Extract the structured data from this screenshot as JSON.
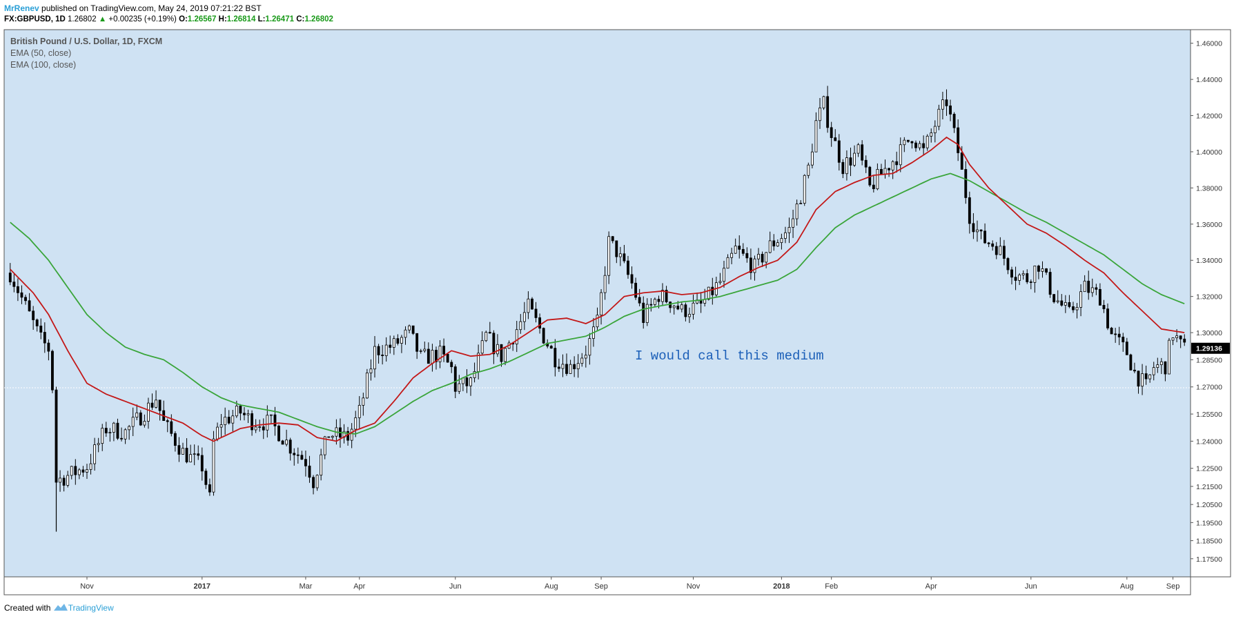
{
  "header": {
    "author": "MrRenev",
    "published_text": "published on TradingView.com, May 24, 2019 07:21:22 BST",
    "symbol": "FX:GBPUSD, 1D",
    "last_value": "1.26802",
    "change": "+0.00235 (+0.19%)",
    "o_label": "O:",
    "o_value": "1.26567",
    "h_label": "H:",
    "h_value": "1.26814",
    "l_label": "L:",
    "l_value": "1.26471",
    "c_label": "C:",
    "c_value": "1.26802"
  },
  "legend": {
    "instrument": "British Pound / U.S. Dollar, 1D, FXCM",
    "ema50": "EMA (50, close)",
    "ema100": "EMA (100, close)"
  },
  "annotation": "I would call this medium",
  "footer": {
    "created_with": "Created with",
    "brand": "TradingView"
  },
  "colors": {
    "background": "#cfe2f3",
    "candle": "#000000",
    "ema50": "#c31818",
    "ema100": "#3aa53a",
    "annotation": "#1b5fb8",
    "price_tag": "#000000"
  },
  "chart_data": {
    "type": "candlestick",
    "ylim": [
      1.165,
      1.4675
    ],
    "y_ticks": [
      "1.46000",
      "1.44000",
      "1.42000",
      "1.40000",
      "1.38000",
      "1.36000",
      "1.34000",
      "1.32000",
      "1.30000",
      "1.28500",
      "1.27000",
      "1.25500",
      "1.24000",
      "1.22500",
      "1.21500",
      "1.20500",
      "1.19500",
      "1.18500",
      "1.17500"
    ],
    "x_ticks": [
      "Nov",
      "2017",
      "Mar",
      "Apr",
      "Jun",
      "Aug",
      "Sep",
      "Nov",
      "2018",
      "Feb",
      "Apr",
      "Jun",
      "Aug",
      "Sep"
    ],
    "x_tick_bold": [
      false,
      true,
      false,
      false,
      false,
      false,
      false,
      false,
      true,
      false,
      false,
      false,
      false,
      false
    ],
    "x_tick_index": [
      20,
      50,
      77,
      91,
      116,
      141,
      154,
      178,
      201,
      214,
      240,
      266,
      291,
      303
    ],
    "n_bars": 307,
    "current_price_label": "1.29136",
    "current_price": 1.29136,
    "crosshair_price": 1.2695,
    "price_path": [
      [
        0,
        1.333
      ],
      [
        8,
        1.296
      ],
      [
        10,
        1.291
      ],
      [
        11,
        1.27
      ],
      [
        12,
        1.218
      ],
      [
        14,
        1.22
      ],
      [
        20,
        1.226
      ],
      [
        25,
        1.247
      ],
      [
        30,
        1.245
      ],
      [
        35,
        1.256
      ],
      [
        38,
        1.264
      ],
      [
        40,
        1.25
      ],
      [
        45,
        1.234
      ],
      [
        50,
        1.226
      ],
      [
        52,
        1.208
      ],
      [
        53,
        1.24
      ],
      [
        55,
        1.251
      ],
      [
        60,
        1.256
      ],
      [
        63,
        1.251
      ],
      [
        68,
        1.25
      ],
      [
        73,
        1.237
      ],
      [
        77,
        1.229
      ],
      [
        79,
        1.218
      ],
      [
        83,
        1.244
      ],
      [
        88,
        1.242
      ],
      [
        91,
        1.256
      ],
      [
        95,
        1.29
      ],
      [
        100,
        1.293
      ],
      [
        104,
        1.3
      ],
      [
        107,
        1.286
      ],
      [
        112,
        1.288
      ],
      [
        115,
        1.28
      ],
      [
        116,
        1.27
      ],
      [
        120,
        1.272
      ],
      [
        124,
        1.298
      ],
      [
        128,
        1.287
      ],
      [
        132,
        1.302
      ],
      [
        135,
        1.314
      ],
      [
        138,
        1.302
      ],
      [
        142,
        1.286
      ],
      [
        146,
        1.281
      ],
      [
        150,
        1.29
      ],
      [
        153,
        1.305
      ],
      [
        156,
        1.35
      ],
      [
        158,
        1.345
      ],
      [
        162,
        1.327
      ],
      [
        165,
        1.308
      ],
      [
        169,
        1.321
      ],
      [
        173,
        1.316
      ],
      [
        175,
        1.312
      ],
      [
        180,
        1.315
      ],
      [
        185,
        1.328
      ],
      [
        189,
        1.346
      ],
      [
        194,
        1.336
      ],
      [
        198,
        1.348
      ],
      [
        203,
        1.357
      ],
      [
        206,
        1.376
      ],
      [
        208,
        1.391
      ],
      [
        210,
        1.416
      ],
      [
        212,
        1.426
      ],
      [
        214,
        1.41
      ],
      [
        217,
        1.392
      ],
      [
        221,
        1.4
      ],
      [
        224,
        1.38
      ],
      [
        227,
        1.388
      ],
      [
        232,
        1.4
      ],
      [
        235,
        1.409
      ],
      [
        238,
        1.4
      ],
      [
        242,
        1.42
      ],
      [
        244,
        1.428
      ],
      [
        247,
        1.4
      ],
      [
        250,
        1.365
      ],
      [
        253,
        1.352
      ],
      [
        257,
        1.348
      ],
      [
        262,
        1.332
      ],
      [
        265,
        1.33
      ],
      [
        268,
        1.338
      ],
      [
        272,
        1.32
      ],
      [
        276,
        1.31
      ],
      [
        280,
        1.325
      ],
      [
        284,
        1.32
      ],
      [
        287,
        1.299
      ],
      [
        291,
        1.289
      ],
      [
        293,
        1.278
      ],
      [
        296,
        1.27
      ],
      [
        298,
        1.281
      ],
      [
        301,
        1.282
      ],
      [
        303,
        1.3
      ],
      [
        305,
        1.293
      ],
      [
        306,
        1.291
      ]
    ],
    "ema50_path": [
      [
        0,
        1.335
      ],
      [
        6,
        1.322
      ],
      [
        10,
        1.31
      ],
      [
        15,
        1.29
      ],
      [
        20,
        1.272
      ],
      [
        25,
        1.266
      ],
      [
        30,
        1.262
      ],
      [
        35,
        1.258
      ],
      [
        40,
        1.254
      ],
      [
        45,
        1.25
      ],
      [
        50,
        1.243
      ],
      [
        53,
        1.24
      ],
      [
        57,
        1.244
      ],
      [
        60,
        1.247
      ],
      [
        65,
        1.249
      ],
      [
        70,
        1.25
      ],
      [
        75,
        1.249
      ],
      [
        80,
        1.242
      ],
      [
        85,
        1.24
      ],
      [
        90,
        1.246
      ],
      [
        95,
        1.25
      ],
      [
        100,
        1.262
      ],
      [
        105,
        1.275
      ],
      [
        110,
        1.283
      ],
      [
        115,
        1.29
      ],
      [
        120,
        1.287
      ],
      [
        125,
        1.288
      ],
      [
        130,
        1.293
      ],
      [
        135,
        1.3
      ],
      [
        140,
        1.307
      ],
      [
        145,
        1.308
      ],
      [
        150,
        1.305
      ],
      [
        155,
        1.31
      ],
      [
        160,
        1.32
      ],
      [
        165,
        1.322
      ],
      [
        170,
        1.323
      ],
      [
        175,
        1.321
      ],
      [
        180,
        1.322
      ],
      [
        185,
        1.325
      ],
      [
        190,
        1.331
      ],
      [
        195,
        1.336
      ],
      [
        200,
        1.34
      ],
      [
        205,
        1.35
      ],
      [
        210,
        1.368
      ],
      [
        215,
        1.378
      ],
      [
        220,
        1.383
      ],
      [
        225,
        1.387
      ],
      [
        230,
        1.388
      ],
      [
        235,
        1.394
      ],
      [
        240,
        1.401
      ],
      [
        244,
        1.408
      ],
      [
        247,
        1.404
      ],
      [
        250,
        1.393
      ],
      [
        255,
        1.38
      ],
      [
        260,
        1.37
      ],
      [
        265,
        1.36
      ],
      [
        270,
        1.355
      ],
      [
        275,
        1.348
      ],
      [
        280,
        1.34
      ],
      [
        285,
        1.333
      ],
      [
        290,
        1.322
      ],
      [
        295,
        1.312
      ],
      [
        300,
        1.302
      ],
      [
        306,
        1.3
      ]
    ],
    "ema100_path": [
      [
        0,
        1.361
      ],
      [
        5,
        1.352
      ],
      [
        10,
        1.34
      ],
      [
        15,
        1.325
      ],
      [
        20,
        1.31
      ],
      [
        25,
        1.3
      ],
      [
        30,
        1.292
      ],
      [
        35,
        1.288
      ],
      [
        40,
        1.285
      ],
      [
        45,
        1.278
      ],
      [
        50,
        1.27
      ],
      [
        55,
        1.264
      ],
      [
        60,
        1.26
      ],
      [
        65,
        1.258
      ],
      [
        70,
        1.256
      ],
      [
        75,
        1.252
      ],
      [
        80,
        1.248
      ],
      [
        85,
        1.245
      ],
      [
        90,
        1.244
      ],
      [
        95,
        1.248
      ],
      [
        100,
        1.255
      ],
      [
        105,
        1.262
      ],
      [
        110,
        1.268
      ],
      [
        115,
        1.272
      ],
      [
        120,
        1.277
      ],
      [
        125,
        1.28
      ],
      [
        130,
        1.284
      ],
      [
        135,
        1.289
      ],
      [
        140,
        1.294
      ],
      [
        145,
        1.296
      ],
      [
        150,
        1.298
      ],
      [
        155,
        1.303
      ],
      [
        160,
        1.309
      ],
      [
        165,
        1.313
      ],
      [
        170,
        1.315
      ],
      [
        175,
        1.317
      ],
      [
        180,
        1.318
      ],
      [
        185,
        1.32
      ],
      [
        190,
        1.323
      ],
      [
        195,
        1.326
      ],
      [
        200,
        1.329
      ],
      [
        205,
        1.335
      ],
      [
        210,
        1.347
      ],
      [
        215,
        1.358
      ],
      [
        220,
        1.365
      ],
      [
        225,
        1.37
      ],
      [
        230,
        1.375
      ],
      [
        235,
        1.38
      ],
      [
        240,
        1.385
      ],
      [
        245,
        1.388
      ],
      [
        250,
        1.384
      ],
      [
        255,
        1.378
      ],
      [
        260,
        1.372
      ],
      [
        265,
        1.366
      ],
      [
        270,
        1.361
      ],
      [
        275,
        1.355
      ],
      [
        280,
        1.349
      ],
      [
        285,
        1.343
      ],
      [
        290,
        1.335
      ],
      [
        295,
        1.327
      ],
      [
        300,
        1.321
      ],
      [
        306,
        1.316
      ]
    ]
  }
}
